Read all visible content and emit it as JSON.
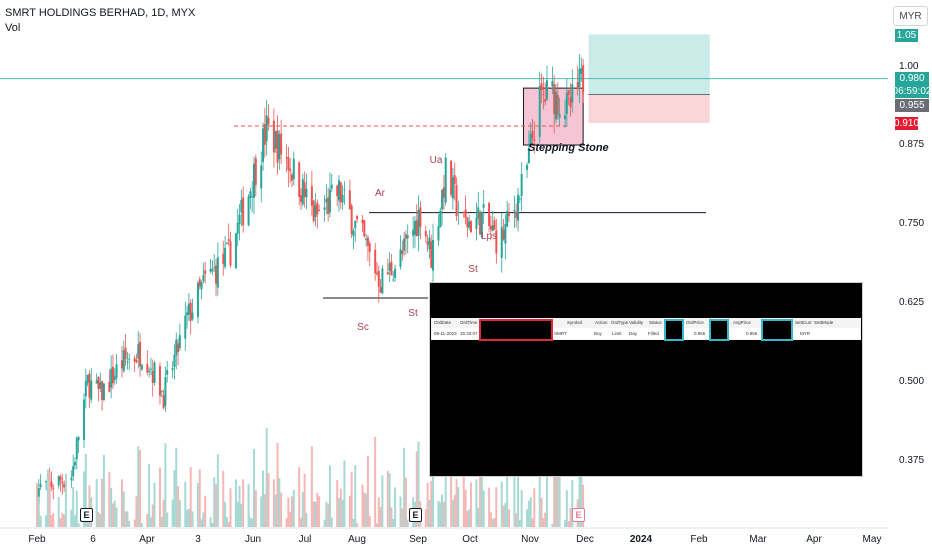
{
  "header": {
    "title": "SMRT HOLDINGS BERHAD, 1D, MYX",
    "volume_label": "Vol"
  },
  "currency_button": "MYR",
  "colors": {
    "up": "#26a69a",
    "down": "#ef5350",
    "vol_up": "#a7d9d4",
    "vol_down": "#f5b7b5",
    "last_price": "#26a69a",
    "price_line": "#4dbfb3",
    "target_fill": "#c9ece9",
    "stop_fill": "#fbd6d8",
    "box_fill": "#f3b7cb",
    "stop_badge": "#e21b33",
    "grey_badge": "#6a6d78"
  },
  "price_scale": {
    "ticks": [
      "1.00",
      "0.875",
      "0.750",
      "0.625",
      "0.500",
      "0.375"
    ],
    "badges": {
      "target": "1.05",
      "last": "0.980",
      "countdown": "06:59:02",
      "entry": "0.955",
      "stop": "0.910"
    }
  },
  "time_axis": {
    "labels": [
      "Feb",
      "6",
      "Apr",
      "3",
      "Jun",
      "Jul",
      "Aug",
      "Sep",
      "Oct",
      "Nov",
      "Dec",
      "2024",
      "Feb",
      "Mar",
      "Apr",
      "May"
    ]
  },
  "annotations": {
    "stepping_stone": "Stepping Stone",
    "wyckoff": [
      "Sc",
      "St",
      "Ar",
      "Ua",
      "St",
      "Lps"
    ],
    "earnings_mark": "E"
  },
  "chart_data": {
    "type": "candlestick",
    "title": "SMRT HOLDINGS BERHAD, 1D, MYX",
    "series": [
      {
        "name": "Vol",
        "type": "bar"
      }
    ],
    "ylim": [
      0.31,
      1.07
    ],
    "y_ticks": [
      1.0,
      0.875,
      0.75,
      0.625,
      0.5,
      0.375
    ],
    "last_price": 0.98,
    "path": [
      [
        "2023-02-01",
        0.33
      ],
      [
        "2023-02-20",
        0.35
      ],
      [
        "2023-03-01",
        0.5
      ],
      [
        "2023-03-08",
        0.48
      ],
      [
        "2023-03-20",
        0.53
      ],
      [
        "2023-04-01",
        0.55
      ],
      [
        "2023-04-12",
        0.48
      ],
      [
        "2023-04-25",
        0.6
      ],
      [
        "2023-05-05",
        0.66
      ],
      [
        "2023-05-18",
        0.7
      ],
      [
        "2023-05-28",
        0.79
      ],
      [
        "2023-06-08",
        0.9
      ],
      [
        "2023-06-20",
        0.85
      ],
      [
        "2023-07-05",
        0.76
      ],
      [
        "2023-07-18",
        0.8
      ],
      [
        "2023-08-01",
        0.72
      ],
      [
        "2023-08-10",
        0.66
      ],
      [
        "2023-08-22",
        0.7
      ],
      [
        "2023-09-01",
        0.77
      ],
      [
        "2023-09-07",
        0.7
      ],
      [
        "2023-09-15",
        0.83
      ],
      [
        "2023-09-25",
        0.75
      ],
      [
        "2023-10-05",
        0.76
      ],
      [
        "2023-10-15",
        0.72
      ],
      [
        "2023-10-22",
        0.77
      ],
      [
        "2023-10-29",
        0.82
      ],
      [
        "2023-11-05",
        0.94
      ],
      [
        "2023-11-12",
        0.96
      ],
      [
        "2023-11-22",
        0.93
      ],
      [
        "2023-11-30",
        0.98
      ]
    ],
    "levels": {
      "resistance_dashed": 0.905,
      "ar_line": 0.768,
      "sc_line": 0.633,
      "stepping_stone_box": {
        "from": "2023-10-28",
        "to": "2023-11-30",
        "low": 0.875,
        "high": 0.965
      },
      "position": {
        "entry": 0.955,
        "target": 1.05,
        "stop": 0.91,
        "from": "2023-12-03",
        "to": "2024-02-08"
      }
    },
    "earnings_dates": [
      "2023-02-28",
      "2023-08-28",
      "2023-11-28"
    ],
    "order_panel": {
      "columns": [
        "OrdDate",
        "OrdTime",
        "",
        "Symbol",
        "Action",
        "OrdType",
        "Validity",
        "Status",
        "",
        "OrdPrice",
        "",
        "AvgPrice",
        "",
        "SettCurr",
        "SettMode"
      ],
      "row": [
        "09-11-2023",
        "15:33:07",
        "",
        "SMRT",
        "Buy",
        "Limit",
        "Day",
        "Filled",
        "",
        "0.955",
        "",
        "0.955",
        "",
        "MYR",
        ""
      ]
    }
  }
}
